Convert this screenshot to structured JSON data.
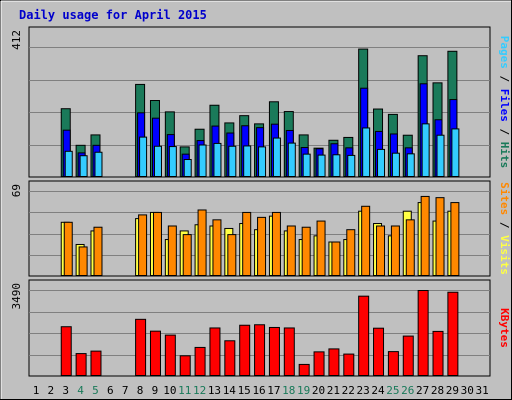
{
  "chart_data": {
    "type": "bar",
    "title": "Daily usage for April 2015",
    "categories": [
      "1",
      "2",
      "3",
      "4",
      "5",
      "6",
      "7",
      "8",
      "9",
      "10",
      "11",
      "12",
      "13",
      "14",
      "15",
      "16",
      "17",
      "18",
      "19",
      "20",
      "21",
      "22",
      "23",
      "24",
      "25",
      "26",
      "27",
      "28",
      "29",
      "30",
      "31"
    ],
    "weekend_days": [
      "4",
      "5",
      "11",
      "12",
      "18",
      "19",
      "25",
      "26"
    ],
    "colors": {
      "pages": "#33ccff",
      "files": "#0000ff",
      "hits": "#1a7a5a",
      "visits": "#ffff44",
      "sites": "#ff8800",
      "kbytes": "#ff0000",
      "weekday_tick": "#000000",
      "weekend_tick": "#1a7a5a"
    },
    "panels": [
      {
        "name": "hits-files-pages",
        "ymax_label": "412",
        "ylim": [
          0,
          412
        ],
        "right_label": [
          {
            "text": "Pages",
            "color": "#33ccff"
          },
          {
            "text": " / ",
            "color": "#000000"
          },
          {
            "text": "Files",
            "color": "#0000ff"
          },
          {
            "text": " / ",
            "color": "#000000"
          },
          {
            "text": "Hits",
            "color": "#1a7a5a"
          }
        ],
        "series": [
          {
            "name": "Hits",
            "values": [
              null,
              null,
              218,
              102,
              135,
              null,
              null,
              295,
              244,
              208,
              97,
              153,
              229,
              173,
              196,
              170,
              240,
              209,
              135,
              93,
              118,
              127,
              407,
              217,
              200,
              134,
              386,
              300,
              400,
              null,
              null
            ]
          },
          {
            "name": "Files",
            "values": [
              null,
              null,
              150,
              78,
              102,
              null,
              null,
              205,
              188,
              136,
              74,
              117,
              163,
              141,
              164,
              158,
              169,
              149,
              95,
              91,
              107,
              94,
              283,
              146,
              138,
              94,
              297,
              183,
              247,
              null,
              null
            ]
          },
          {
            "name": "Pages",
            "values": [
              null,
              null,
              83,
              69,
              80,
              null,
              null,
              128,
              99,
              98,
              57,
              103,
              108,
              99,
              100,
              97,
              125,
              109,
              74,
              71,
              72,
              70,
              157,
              89,
              77,
              75,
              170,
              134,
              154,
              null,
              null
            ]
          }
        ]
      },
      {
        "name": "visits-sites",
        "ymax_label": "69",
        "ylim": [
          0,
          69
        ],
        "right_label": [
          {
            "text": "Sites",
            "color": "#ff8800"
          },
          {
            "text": " / ",
            "color": "#000000"
          },
          {
            "text": "Visits",
            "color": "#ffff44"
          }
        ],
        "series": [
          {
            "name": "Visits",
            "values": [
              null,
              null,
              44,
              26,
              37,
              null,
              null,
              47,
              52,
              30,
              37,
              42,
              41,
              39,
              43,
              38,
              49,
              37,
              30,
              33,
              28,
              30,
              53,
              43,
              33,
              53,
              60,
              45,
              53,
              null,
              null
            ]
          },
          {
            "name": "Sites",
            "values": [
              null,
              null,
              44,
              24,
              40,
              null,
              null,
              50,
              52,
              41,
              34,
              54,
              46,
              34,
              52,
              48,
              52,
              41,
              40,
              45,
              28,
              38,
              57,
              41,
              41,
              46,
              65,
              64,
              60,
              null,
              null
            ]
          }
        ]
      },
      {
        "name": "kbytes",
        "ymax_label": "3490",
        "ylim": [
          0,
          3490
        ],
        "right_label": [
          {
            "text": "KBytes",
            "color": "#ff0000"
          }
        ],
        "series": [
          {
            "name": "KBytes",
            "values": [
              null,
              null,
              2020,
              930,
              1030,
              null,
              null,
              2320,
              1840,
              1680,
              840,
              1180,
              1970,
              1450,
              2080,
              2100,
              1990,
              1970,
              490,
              1000,
              1120,
              910,
              3260,
              1960,
              1010,
              1640,
              3490,
              1830,
              3420,
              null,
              null
            ]
          }
        ]
      }
    ]
  }
}
